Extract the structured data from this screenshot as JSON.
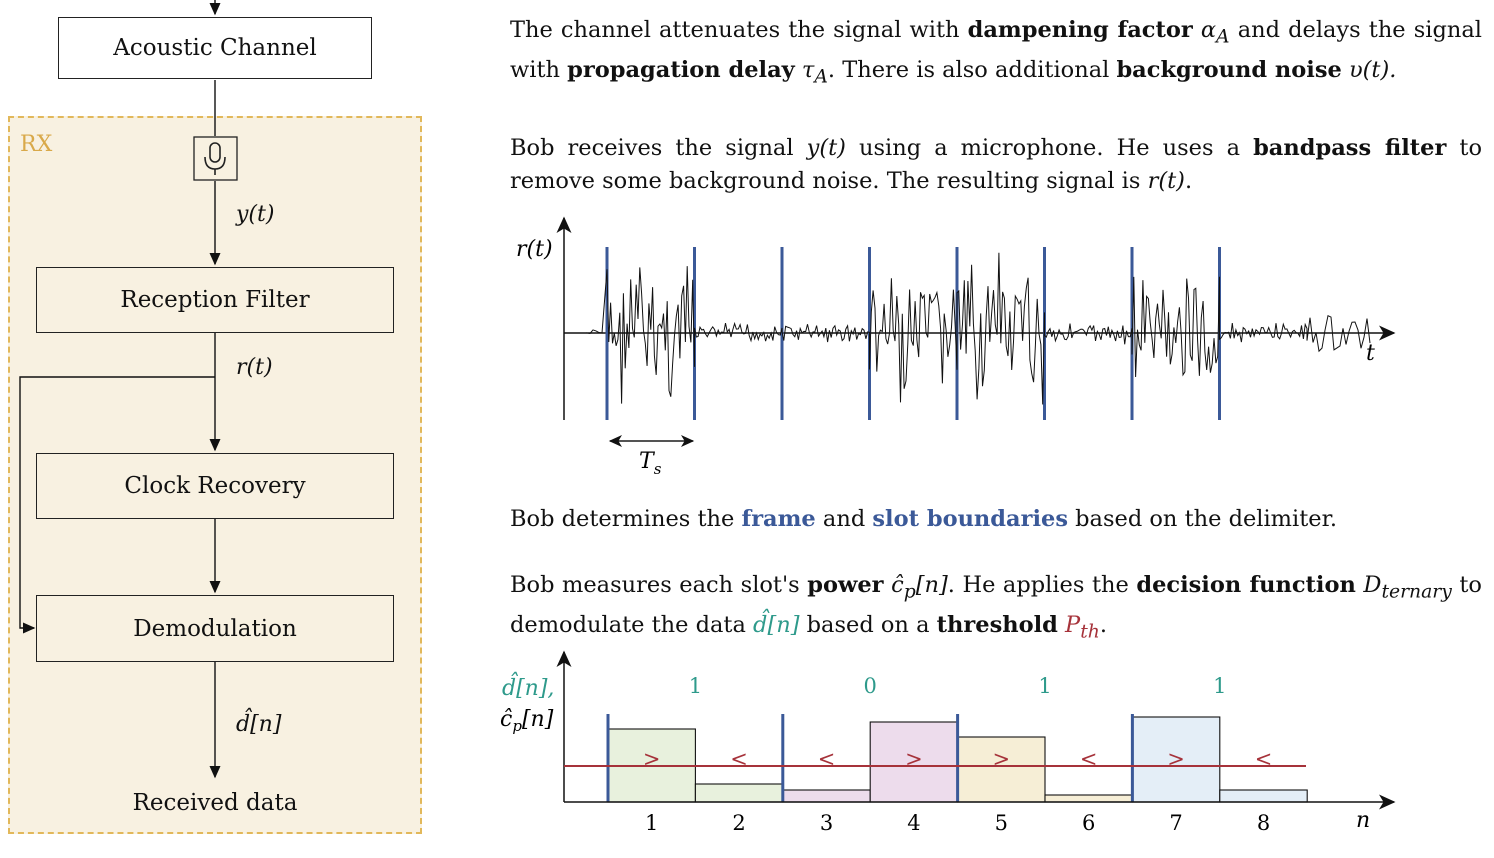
{
  "flow": {
    "acoustic_channel": "Acoustic Channel",
    "rx_label": "RX",
    "y_signal": "y(t)",
    "reception_filter": "Reception Filter",
    "r_signal": "r(t)",
    "clock_recovery": "Clock Recovery",
    "demodulation": "Demodulation",
    "d_hat": "d̂[n]",
    "received_data": "Received data"
  },
  "text": {
    "p1": {
      "a": "The channel attenuates the signal with ",
      "b": "dampening factor",
      "c": " α",
      "c_sub": "A",
      "d": " and delays the signal with ",
      "e": "propagation delay",
      "f": " τ",
      "f_sub": "A",
      "g": ". There is also additional ",
      "h": "background noise",
      "i": " υ(t)."
    },
    "p2": {
      "a": "Bob receives the signal ",
      "b": "y(t)",
      "c": " using a microphone. He uses a ",
      "d": "bandpass filter",
      "e": " to remove some background noise. The resulting signal is ",
      "f": "r(t)",
      "g": "."
    },
    "p3": {
      "a": "Bob determines the ",
      "b": "frame",
      "c": " and ",
      "d": "slot boundaries",
      "e": " based on the delimiter."
    },
    "p4": {
      "a": "Bob measures each slot's ",
      "b": "power",
      "c": " ĉ",
      "c_sub": "p",
      "c2": "[n]",
      "d": ". He applies the ",
      "e": "decision function",
      "f": " D",
      "f_sub": "ternary",
      "g": " to demodulate the data ",
      "h": "d̂[n]",
      "i": " based on a ",
      "j": "threshold",
      "k": " P",
      "k_sub": "th",
      "l": "."
    }
  },
  "chart_data": [
    {
      "type": "line",
      "ylabel": "r(t)",
      "xlabel": "t",
      "period_label": "T",
      "period_label_sub": "s",
      "slot_boundaries": [
        0,
        1,
        2,
        3,
        4,
        5,
        6,
        7
      ],
      "segments": [
        {
          "slot": 1,
          "activity": "high"
        },
        {
          "slot": 2,
          "activity": "low"
        },
        {
          "slot": 3,
          "activity": "low"
        },
        {
          "slot": 4,
          "activity": "high"
        },
        {
          "slot": 5,
          "activity": "high"
        },
        {
          "slot": 6,
          "activity": "low"
        },
        {
          "slot": 7,
          "activity": "high"
        },
        {
          "slot": 8,
          "activity": "low"
        }
      ]
    },
    {
      "type": "bar",
      "ylabel_line1": "d̂[n],",
      "ylabel_line2": "ĉ",
      "ylabel_line2_sub": "p",
      "ylabel_line2_end": "[n]",
      "xlabel": "n",
      "categories": [
        "1",
        "2",
        "3",
        "4",
        "5",
        "6",
        "7",
        "8"
      ],
      "values": [
        0.73,
        0.18,
        0.12,
        0.8,
        0.65,
        0.07,
        0.85,
        0.12
      ],
      "threshold": 0.36,
      "comparisons": [
        ">",
        "<",
        "<",
        ">",
        ">",
        "<",
        ">",
        "<"
      ],
      "decoded_bits": [
        "1",
        "0",
        "1",
        "1"
      ],
      "bit_colors": [
        "#e8f1dd",
        "#eddcec",
        "#f6eed6",
        "#e4eef7"
      ]
    }
  ]
}
